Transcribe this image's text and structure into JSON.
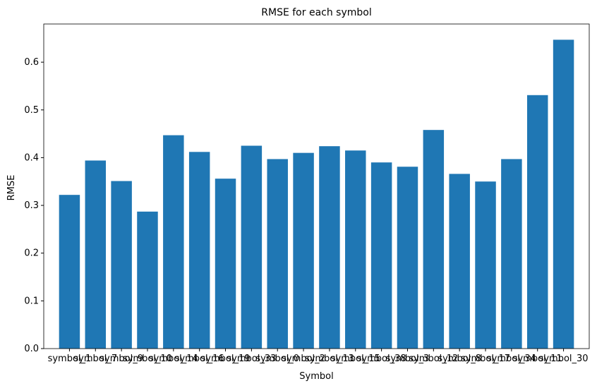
{
  "chart_data": {
    "type": "bar",
    "title": "RMSE for each symbol",
    "xlabel": "Symbol",
    "ylabel": "RMSE",
    "ylim": [
      0,
      0.68
    ],
    "yticks": [
      0.0,
      0.1,
      0.2,
      0.3,
      0.4,
      0.5,
      0.6
    ],
    "ytick_labels": [
      "0.0",
      "0.1",
      "0.2",
      "0.3",
      "0.4",
      "0.5",
      "0.6"
    ],
    "grid": false,
    "bar_color": "#1f77b4",
    "categories": [
      "symbol_1",
      "symbol_7",
      "symbol_9",
      "symbol_10",
      "symbol_14",
      "symbol_16",
      "symbol_19",
      "symbol_33",
      "symbol_0",
      "symbol_2",
      "symbol_13",
      "symbol_15",
      "symbol_38",
      "symbol_3",
      "symbol_12",
      "symbol_8",
      "symbol_17",
      "symbol_34",
      "symbol_11",
      "symbol_30"
    ],
    "values": [
      0.322,
      0.394,
      0.351,
      0.287,
      0.447,
      0.412,
      0.356,
      0.425,
      0.397,
      0.41,
      0.424,
      0.415,
      0.39,
      0.381,
      0.458,
      0.366,
      0.35,
      0.397,
      0.531,
      0.647
    ]
  }
}
